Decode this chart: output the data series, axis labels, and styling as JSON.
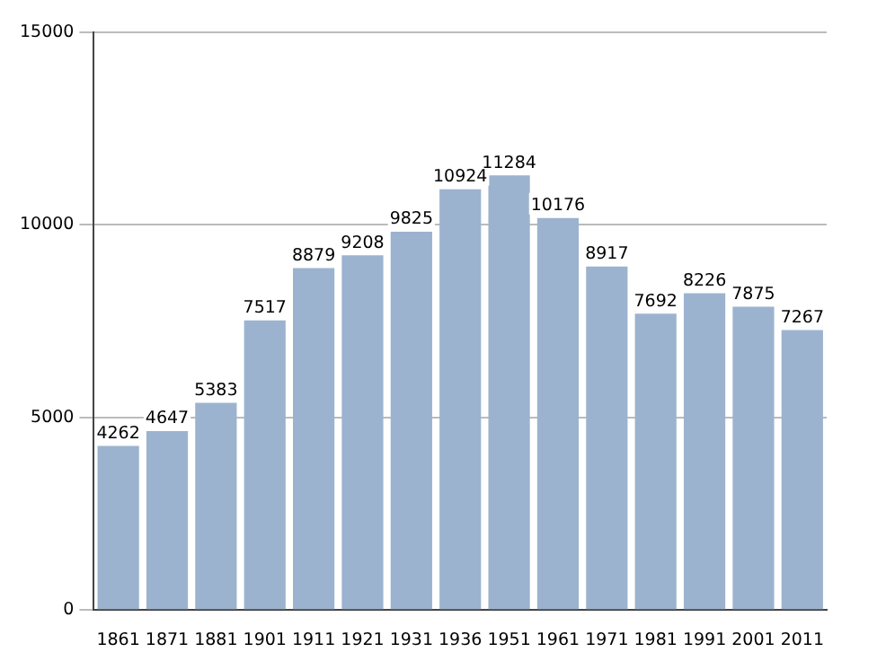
{
  "chart_data": {
    "type": "bar",
    "categories": [
      "1861",
      "1871",
      "1881",
      "1901",
      "1911",
      "1921",
      "1931",
      "1936",
      "1951",
      "1961",
      "1971",
      "1981",
      "1991",
      "2001",
      "2011"
    ],
    "values": [
      4262,
      4647,
      5383,
      7517,
      8879,
      9208,
      9825,
      10924,
      11284,
      10176,
      8917,
      7692,
      8226,
      7875,
      7267
    ],
    "color": "#9cb3cf",
    "ylim": [
      0,
      15000
    ],
    "yticks": [
      0,
      5000,
      10000,
      15000
    ],
    "grid": "y",
    "data_labels": true,
    "legend": false
  }
}
